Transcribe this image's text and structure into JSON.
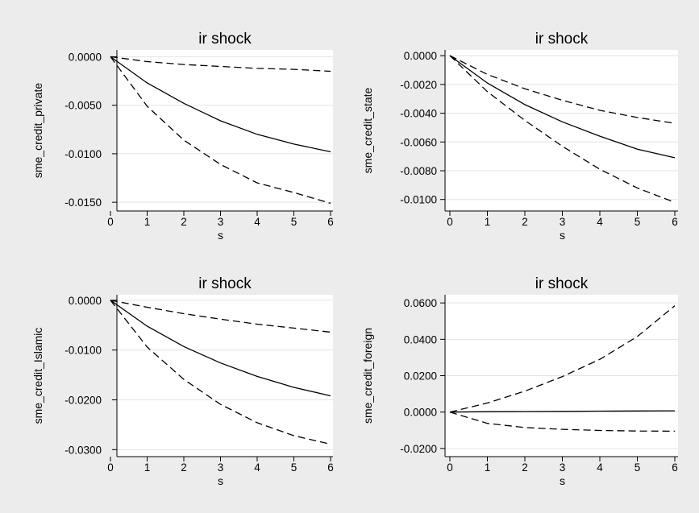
{
  "chart_data": [
    {
      "type": "line",
      "title": "ir shock",
      "xlabel": "s",
      "ylabel": "sme_credit_private",
      "x": [
        0,
        1,
        2,
        3,
        4,
        5,
        6
      ],
      "xticks": [
        "0",
        "1",
        "2",
        "3",
        "4",
        "5",
        "6"
      ],
      "yticks": [
        0.0,
        -0.005,
        -0.01,
        -0.015
      ],
      "ytick_labels": [
        "0.0000",
        "-0.0050",
        "-0.0100",
        "-0.0150"
      ],
      "ylim": [
        -0.0159,
        0.0007
      ],
      "grid": true,
      "series": [
        {
          "style": "solid",
          "values": [
            0.0,
            -0.0027,
            -0.0048,
            -0.0066,
            -0.008,
            -0.009,
            -0.0098
          ]
        },
        {
          "style": "dashed",
          "values": [
            0.0,
            -0.0005,
            -0.0008,
            -0.001,
            -0.0012,
            -0.0013,
            -0.0015
          ]
        },
        {
          "style": "dashed",
          "values": [
            0.0,
            -0.0051,
            -0.0086,
            -0.0111,
            -0.013,
            -0.014,
            -0.0151
          ]
        }
      ]
    },
    {
      "type": "line",
      "title": "ir shock",
      "xlabel": "s",
      "ylabel": "sme_credit_state",
      "x": [
        0,
        1,
        2,
        3,
        4,
        5,
        6
      ],
      "xticks": [
        "0",
        "1",
        "2",
        "3",
        "4",
        "5",
        "6"
      ],
      "yticks": [
        0.0,
        -0.002,
        -0.004,
        -0.006,
        -0.008,
        -0.01
      ],
      "ytick_labels": [
        "0.0000",
        "-0.0020",
        "-0.0040",
        "-0.0060",
        "-0.0080",
        "-0.0100"
      ],
      "ylim": [
        -0.0108,
        0.0004
      ],
      "grid": true,
      "series": [
        {
          "style": "solid",
          "values": [
            0.0,
            -0.0019,
            -0.0034,
            -0.0046,
            -0.0056,
            -0.0065,
            -0.0071
          ]
        },
        {
          "style": "dashed",
          "values": [
            0.0,
            -0.0013,
            -0.0023,
            -0.0031,
            -0.0038,
            -0.0043,
            -0.0047
          ]
        },
        {
          "style": "dashed",
          "values": [
            0.0,
            -0.0025,
            -0.0045,
            -0.0063,
            -0.0079,
            -0.0092,
            -0.0102
          ]
        }
      ]
    },
    {
      "type": "line",
      "title": "ir shock",
      "xlabel": "s",
      "ylabel": "sme_credit_Islamic",
      "x": [
        0,
        1,
        2,
        3,
        4,
        5,
        6
      ],
      "xticks": [
        "0",
        "1",
        "2",
        "3",
        "4",
        "5",
        "6"
      ],
      "yticks": [
        0.0,
        -0.01,
        -0.02,
        -0.03
      ],
      "ytick_labels": [
        "0.0000",
        "-0.0100",
        "-0.0200",
        "-0.0300"
      ],
      "ylim": [
        -0.0314,
        0.0011
      ],
      "grid": true,
      "series": [
        {
          "style": "solid",
          "values": [
            0.0,
            -0.0052,
            -0.0093,
            -0.0126,
            -0.0153,
            -0.0175,
            -0.0192
          ]
        },
        {
          "style": "dashed",
          "values": [
            0.0,
            -0.0014,
            -0.0027,
            -0.0038,
            -0.0048,
            -0.0056,
            -0.0064
          ]
        },
        {
          "style": "dashed",
          "values": [
            0.0,
            -0.0094,
            -0.0159,
            -0.0209,
            -0.0246,
            -0.0272,
            -0.0289
          ]
        }
      ]
    },
    {
      "type": "line",
      "title": "ir shock",
      "xlabel": "s",
      "ylabel": "sme_credit_foreign",
      "x": [
        0,
        1,
        2,
        3,
        4,
        5,
        6
      ],
      "xticks": [
        "0",
        "1",
        "2",
        "3",
        "4",
        "5",
        "6"
      ],
      "yticks": [
        0.06,
        0.04,
        0.02,
        0.0,
        -0.02
      ],
      "ytick_labels": [
        "0.0600",
        "0.0400",
        "0.0200",
        "0.0000",
        "-0.0200"
      ],
      "ylim": [
        -0.0245,
        0.0645
      ],
      "grid": true,
      "series": [
        {
          "style": "solid",
          "values": [
            0.0,
            0.0002,
            0.0003,
            0.0004,
            0.0005,
            0.0006,
            0.0007
          ]
        },
        {
          "style": "dashed",
          "values": [
            0.0,
            0.005,
            0.0115,
            0.0195,
            0.029,
            0.0415,
            0.0585
          ]
        },
        {
          "style": "dashed",
          "values": [
            0.0,
            -0.0062,
            -0.0085,
            -0.0095,
            -0.0101,
            -0.0104,
            -0.0105
          ]
        }
      ]
    }
  ]
}
